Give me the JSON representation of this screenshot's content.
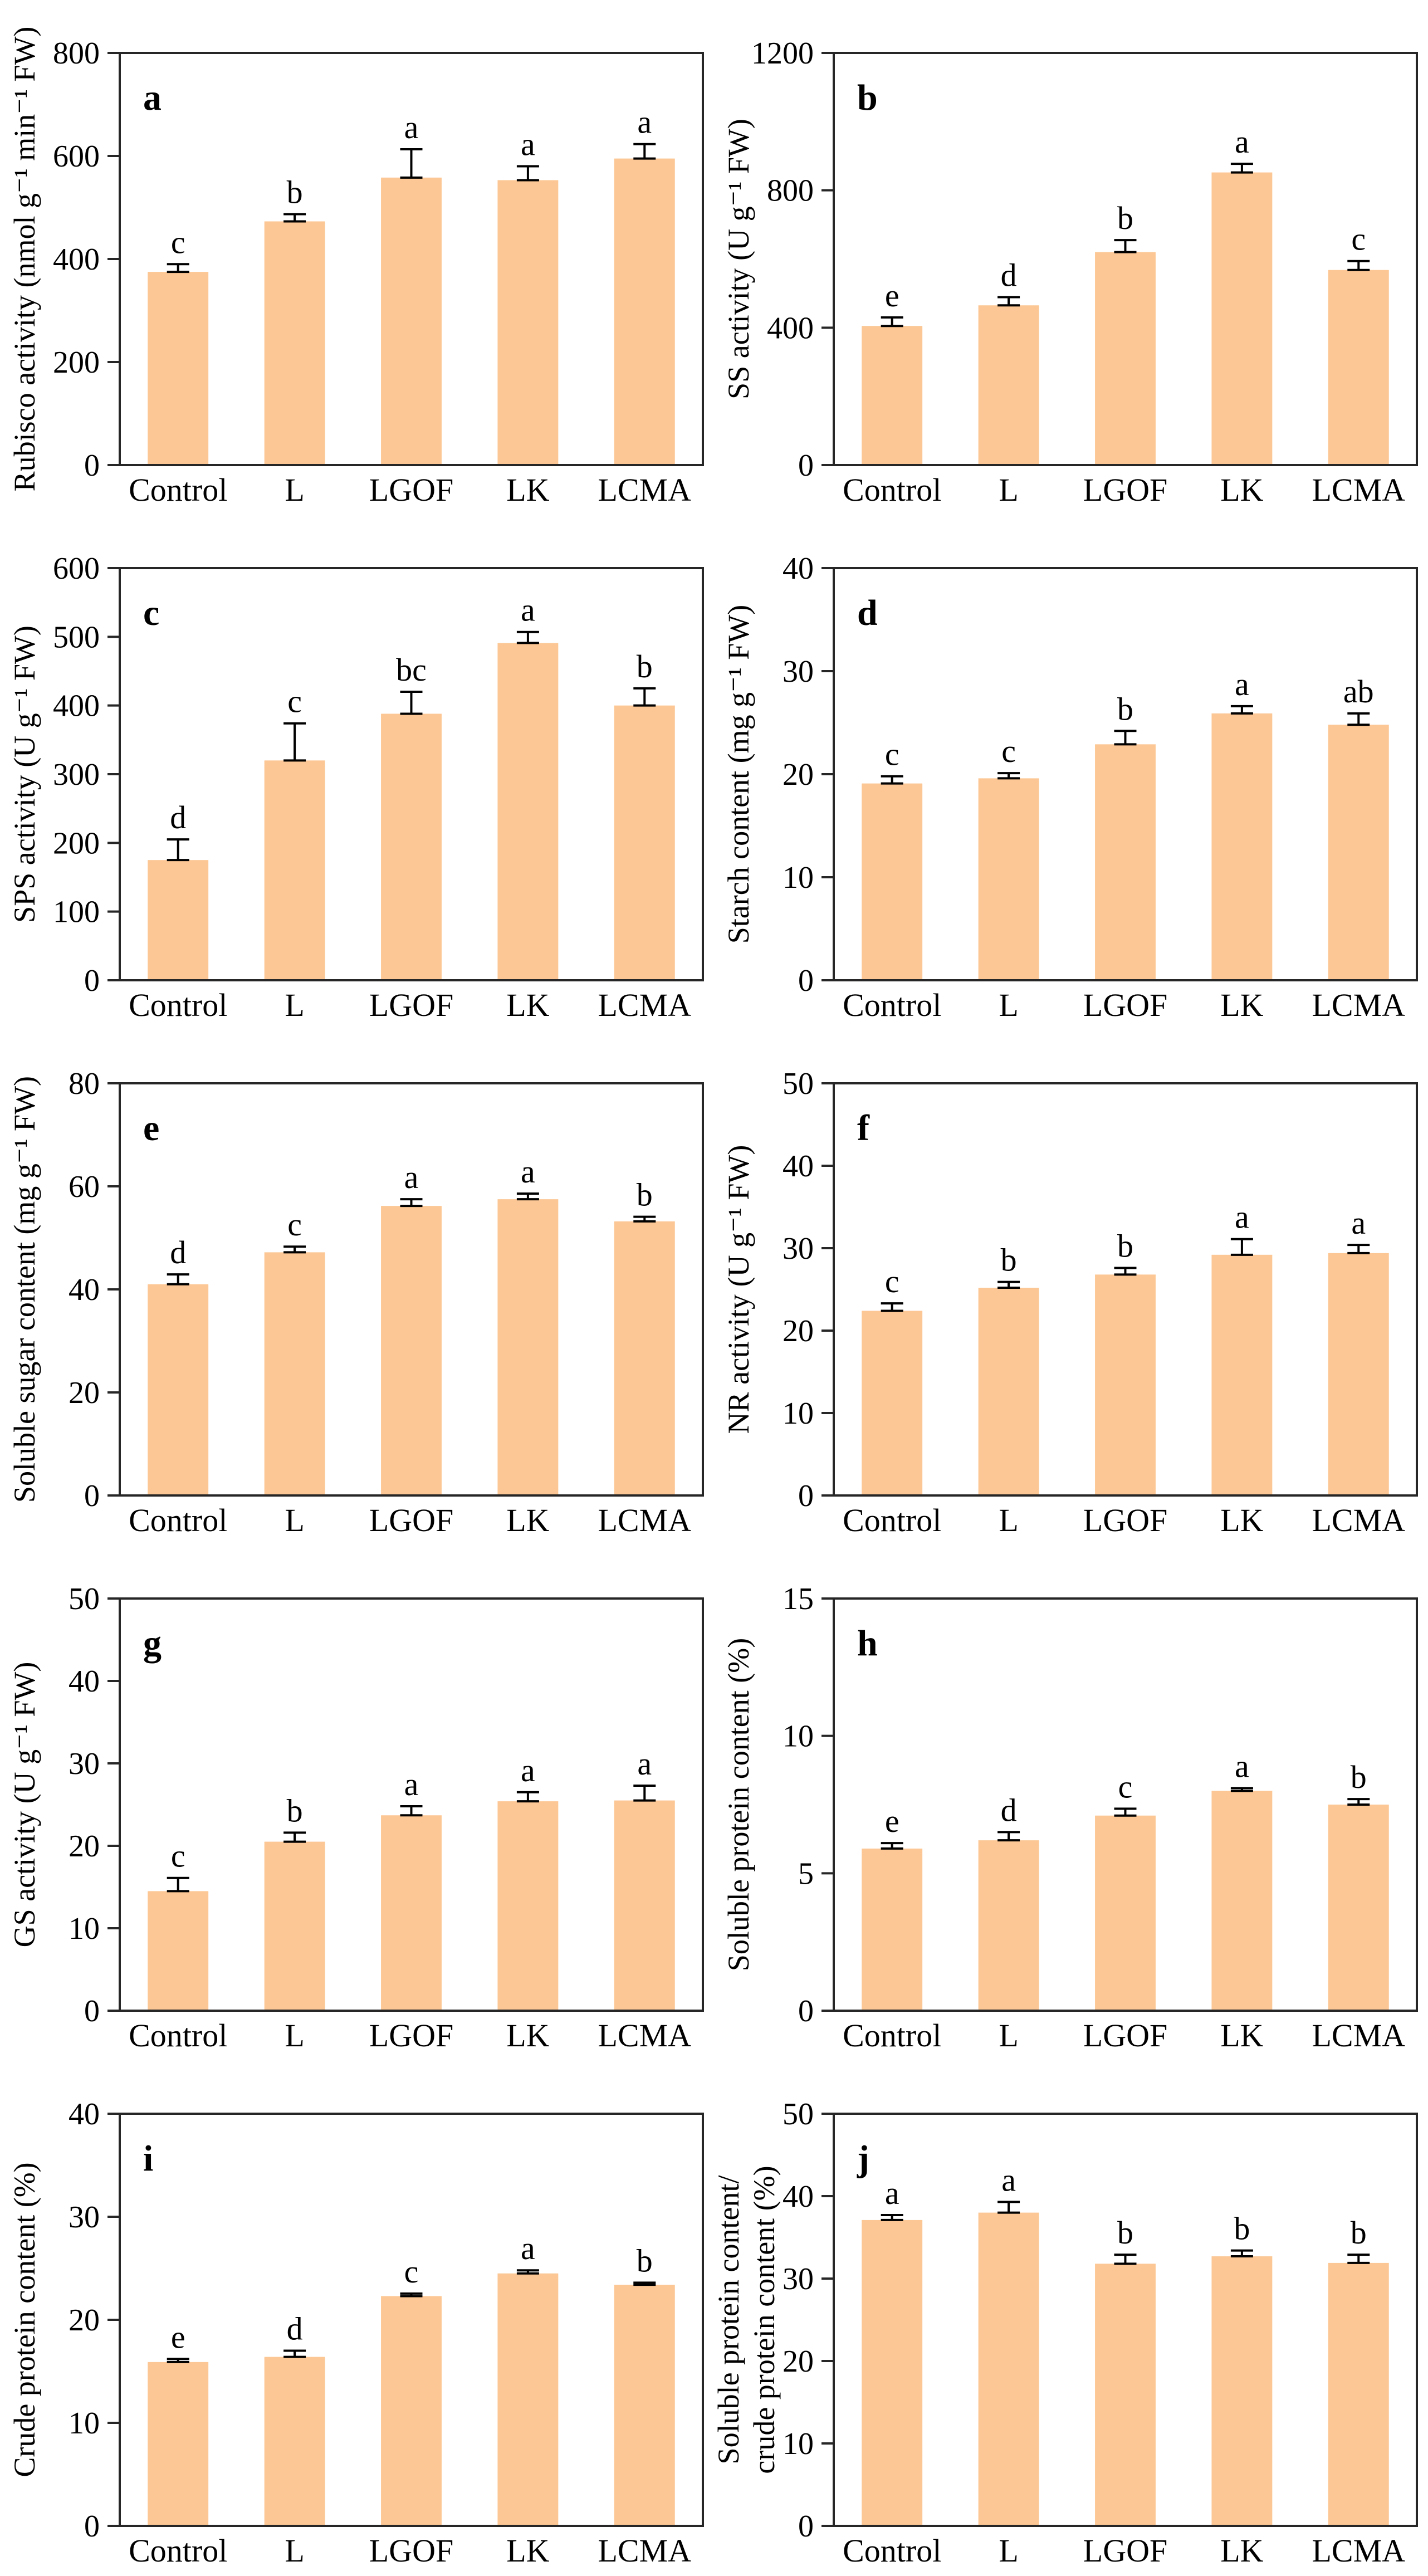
{
  "figure": {
    "description": "Ten-panel bar chart figure (a-j) of enzyme activities and nutrient contents under five treatments",
    "bar_color": "#FCC794",
    "axis_color": "#262626",
    "error_bar_color": "#000000",
    "categories": [
      "Control",
      "L",
      "LGOF",
      "LK",
      "LCMA"
    ]
  },
  "chart_data": [
    {
      "type": "bar",
      "panel": "a",
      "ylabel": "Rubisco activity (nmol g⁻¹ min⁻¹ FW)",
      "ylabel_lines": [
        "Rubisco activity (nmol g⁻¹ min⁻¹ FW)"
      ],
      "ylim": [
        0,
        800
      ],
      "yticks": [
        0,
        200,
        400,
        600,
        800
      ],
      "categories": [
        "Control",
        "L",
        "LGOF",
        "LK",
        "LCMA"
      ],
      "values": [
        375,
        473,
        558,
        553,
        595
      ],
      "errors": [
        15,
        14,
        55,
        27,
        28
      ],
      "sig_letters": [
        "c",
        "b",
        "a",
        "a",
        "a"
      ],
      "grid": false,
      "legend": false
    },
    {
      "type": "bar",
      "panel": "b",
      "ylabel": "SS activity (U g⁻¹ FW)",
      "ylabel_lines": [
        "SS activity (U g⁻¹ FW)"
      ],
      "ylim": [
        0,
        1200
      ],
      "yticks": [
        0,
        400,
        800,
        1200
      ],
      "categories": [
        "Control",
        "L",
        "LGOF",
        "LK",
        "LCMA"
      ],
      "values": [
        405,
        465,
        620,
        852,
        568
      ],
      "errors": [
        25,
        24,
        35,
        25,
        26
      ],
      "sig_letters": [
        "e",
        "d",
        "b",
        "a",
        "c"
      ],
      "grid": false,
      "legend": false
    },
    {
      "type": "bar",
      "panel": "c",
      "ylabel": "SPS activity (U g⁻¹ FW)",
      "ylabel_lines": [
        "SPS activity (U g⁻¹ FW)"
      ],
      "ylim": [
        0,
        600
      ],
      "yticks": [
        0,
        100,
        200,
        300,
        400,
        500,
        600
      ],
      "categories": [
        "Control",
        "L",
        "LGOF",
        "LK",
        "LCMA"
      ],
      "values": [
        175,
        320,
        388,
        491,
        400
      ],
      "errors": [
        30,
        54,
        32,
        16,
        25
      ],
      "sig_letters": [
        "d",
        "c",
        "bc",
        "a",
        "b"
      ],
      "grid": false,
      "legend": false
    },
    {
      "type": "bar",
      "panel": "d",
      "ylabel": "Starch content (mg g⁻¹ FW)",
      "ylabel_lines": [
        "Starch content (mg g⁻¹ FW)"
      ],
      "ylim": [
        0,
        40
      ],
      "yticks": [
        0,
        10,
        20,
        30,
        40
      ],
      "categories": [
        "Control",
        "L",
        "LGOF",
        "LK",
        "LCMA"
      ],
      "values": [
        19.1,
        19.6,
        22.9,
        25.9,
        24.8
      ],
      "errors": [
        0.7,
        0.5,
        1.3,
        0.7,
        1.1
      ],
      "sig_letters": [
        "c",
        "c",
        "b",
        "a",
        "ab"
      ],
      "grid": false,
      "legend": false
    },
    {
      "type": "bar",
      "panel": "e",
      "ylabel": "Soluble sugar content (mg g⁻¹ FW)",
      "ylabel_lines": [
        "Soluble sugar content (mg g⁻¹ FW)"
      ],
      "ylim": [
        0,
        80
      ],
      "yticks": [
        0,
        20,
        40,
        60,
        80
      ],
      "categories": [
        "Control",
        "L",
        "LGOF",
        "LK",
        "LCMA"
      ],
      "values": [
        41.0,
        47.2,
        56.2,
        57.5,
        53.2
      ],
      "errors": [
        1.9,
        1.1,
        1.3,
        1.1,
        0.9
      ],
      "sig_letters": [
        "d",
        "c",
        "a",
        "a",
        "b"
      ],
      "grid": false,
      "legend": false
    },
    {
      "type": "bar",
      "panel": "f",
      "ylabel": "NR activity (U g⁻¹ FW)",
      "ylabel_lines": [
        "NR activity (U g⁻¹ FW)"
      ],
      "ylim": [
        0,
        50
      ],
      "yticks": [
        0,
        10,
        20,
        30,
        40,
        50
      ],
      "categories": [
        "Control",
        "L",
        "LGOF",
        "LK",
        "LCMA"
      ],
      "values": [
        22.4,
        25.2,
        26.8,
        29.2,
        29.4
      ],
      "errors": [
        0.9,
        0.7,
        0.8,
        1.9,
        1.0
      ],
      "sig_letters": [
        "c",
        "b",
        "b",
        "a",
        "a"
      ],
      "grid": false,
      "legend": false
    },
    {
      "type": "bar",
      "panel": "g",
      "ylabel": "GS activity (U g⁻¹ FW)",
      "ylabel_lines": [
        "GS activity (U g⁻¹ FW)"
      ],
      "ylim": [
        0,
        50
      ],
      "yticks": [
        0,
        10,
        20,
        30,
        40,
        50
      ],
      "categories": [
        "Control",
        "L",
        "LGOF",
        "LK",
        "LCMA"
      ],
      "values": [
        14.5,
        20.5,
        23.7,
        25.4,
        25.5
      ],
      "errors": [
        1.6,
        1.1,
        1.1,
        1.1,
        1.8
      ],
      "sig_letters": [
        "c",
        "b",
        "a",
        "a",
        "a"
      ],
      "grid": false,
      "legend": false
    },
    {
      "type": "bar",
      "panel": "h",
      "ylabel": "Soluble protein content (%)",
      "ylabel_lines": [
        "Soluble protein content (%)"
      ],
      "ylim": [
        0,
        15
      ],
      "yticks": [
        0,
        5,
        10,
        15
      ],
      "categories": [
        "Control",
        "L",
        "LGOF",
        "LK",
        "LCMA"
      ],
      "values": [
        5.9,
        6.2,
        7.1,
        8.0,
        7.5
      ],
      "errors": [
        0.2,
        0.3,
        0.25,
        0.1,
        0.2
      ],
      "sig_letters": [
        "e",
        "d",
        "c",
        "a",
        "b"
      ],
      "grid": false,
      "legend": false
    },
    {
      "type": "bar",
      "panel": "i",
      "ylabel": "Crude protein content (%)",
      "ylabel_lines": [
        "Crude protein content (%)"
      ],
      "ylim": [
        0,
        40
      ],
      "yticks": [
        0,
        10,
        20,
        30,
        40
      ],
      "categories": [
        "Control",
        "L",
        "LGOF",
        "LK",
        "LCMA"
      ],
      "values": [
        15.9,
        16.4,
        22.3,
        24.5,
        23.4
      ],
      "errors": [
        0.3,
        0.6,
        0.25,
        0.3,
        0.2
      ],
      "sig_letters": [
        "e",
        "d",
        "c",
        "a",
        "b"
      ],
      "grid": false,
      "legend": false
    },
    {
      "type": "bar",
      "panel": "j",
      "ylabel": "Soluble protein content/ crude protein content (%)",
      "ylabel_lines": [
        "Soluble protein content/",
        "crude protein content (%)"
      ],
      "ylim": [
        0,
        50
      ],
      "yticks": [
        0,
        10,
        20,
        30,
        40,
        50
      ],
      "categories": [
        "Control",
        "L",
        "LGOF",
        "LK",
        "LCMA"
      ],
      "values": [
        37.1,
        38.0,
        31.8,
        32.7,
        31.9
      ],
      "errors": [
        0.6,
        1.3,
        1.1,
        0.7,
        1.0
      ],
      "sig_letters": [
        "a",
        "a",
        "b",
        "b",
        "b"
      ],
      "grid": false,
      "legend": false
    }
  ]
}
